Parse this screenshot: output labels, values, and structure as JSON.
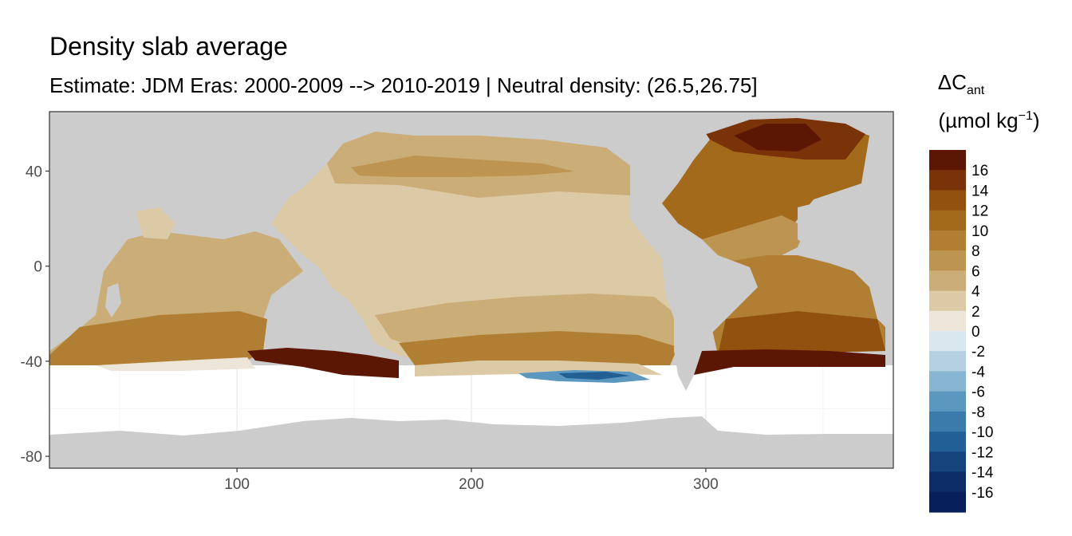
{
  "chart_data": {
    "type": "heatmap",
    "title": "Density slab average",
    "subtitle": "Estimate: JDM Eras: 2000-2009 --> 2010-2019 | Neutral density: (26.5,26.75]",
    "xlabel": "",
    "ylabel": "",
    "xlim": [
      20,
      380
    ],
    "ylim": [
      -85,
      65
    ],
    "x_ticks": [
      100,
      200,
      300
    ],
    "y_ticks": [
      40,
      0,
      -40,
      -80
    ],
    "legend": {
      "title_main": "ΔC",
      "title_sub": "ant",
      "unit_prefix": "(µmol kg",
      "unit_exp": "−1",
      "unit_suffix": ")",
      "placement": "right",
      "labels": [
        "16",
        "14",
        "12",
        "10",
        "8",
        "6",
        "4",
        "2",
        "0",
        "-2",
        "-4",
        "-6",
        "-8",
        "-10",
        "-12",
        "-14",
        "-16"
      ],
      "colors": [
        "#5c1704",
        "#7a3208",
        "#91510f",
        "#a36a1c",
        "#b07f33",
        "#bd9450",
        "#cbad78",
        "#dcc9a5",
        "#ede5d8",
        "#dbe7ee",
        "#b4d0e1",
        "#86b4d1",
        "#5b97be",
        "#3a7bab",
        "#225f95",
        "#15437c",
        "#0c2d67",
        "#071f5a"
      ]
    },
    "regions": [
      {
        "name": "north-pacific-band",
        "value": 6
      },
      {
        "name": "central-pacific",
        "value": 3
      },
      {
        "name": "south-pacific-band",
        "value": 8
      },
      {
        "name": "subpolar-north-atlantic",
        "value": 16
      },
      {
        "name": "north-atlantic-subtropics",
        "value": 12
      },
      {
        "name": "south-atlantic",
        "value": 10
      },
      {
        "name": "indian-ocean",
        "value": 8
      },
      {
        "name": "southern-ocean-front-indian",
        "value": 17
      },
      {
        "name": "southern-ocean-front-atlantic",
        "value": 17
      },
      {
        "name": "southeast-pacific-negative",
        "value": -8
      }
    ]
  }
}
